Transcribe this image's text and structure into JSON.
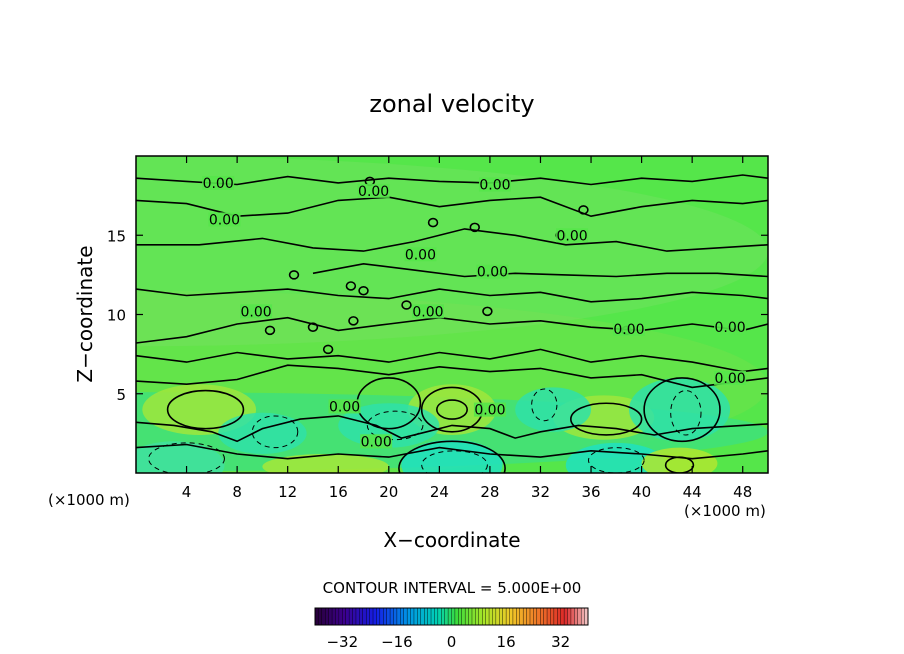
{
  "chart_data": {
    "type": "heatmap",
    "title": "zonal velocity",
    "xlabel": "X−coordinate",
    "ylabel": "Z−coordinate",
    "x_unit": "(×1000 m)",
    "x_unit_right": "(×1000 m)",
    "xlim": [
      0,
      50
    ],
    "ylim": [
      0,
      20
    ],
    "x_ticks": [
      4,
      8,
      12,
      16,
      20,
      24,
      28,
      32,
      36,
      40,
      44,
      48
    ],
    "y_ticks": [
      5,
      10,
      15
    ],
    "contour_interval_text": "CONTOUR INTERVAL = 5.000E+00",
    "colorbar": {
      "range": [
        -40,
        40
      ],
      "ticks": [
        -32,
        -16,
        0,
        16,
        32
      ],
      "tick_labels": [
        "−32",
        "−16",
        "0",
        "16",
        "32"
      ]
    },
    "contour_labels": [
      {
        "text": "0.00",
        "x": 6.5,
        "y": 18.3
      },
      {
        "text": "0.00",
        "x": 18.8,
        "y": 17.8
      },
      {
        "text": "0.00",
        "x": 28.4,
        "y": 18.2
      },
      {
        "text": "0.00",
        "x": 7.0,
        "y": 16.0
      },
      {
        "text": "0.00",
        "x": 22.5,
        "y": 13.8
      },
      {
        "text": "0.00",
        "x": 34.5,
        "y": 15.0
      },
      {
        "text": "0.00",
        "x": 28.2,
        "y": 12.7
      },
      {
        "text": "0.00",
        "x": 9.5,
        "y": 10.2
      },
      {
        "text": "0.00",
        "x": 23.1,
        "y": 10.2
      },
      {
        "text": "0.00",
        "x": 39.0,
        "y": 9.1
      },
      {
        "text": "0.00",
        "x": 47.0,
        "y": 9.2
      },
      {
        "text": "0.00",
        "x": 47.0,
        "y": 6.0
      },
      {
        "text": "0.00",
        "x": 16.5,
        "y": 4.2
      },
      {
        "text": "0.00",
        "x": 28.0,
        "y": 4.0
      },
      {
        "text": "0.00",
        "x": 19.0,
        "y": 2.0
      }
    ],
    "grid": false,
    "legend": "colorbar-bottom"
  }
}
